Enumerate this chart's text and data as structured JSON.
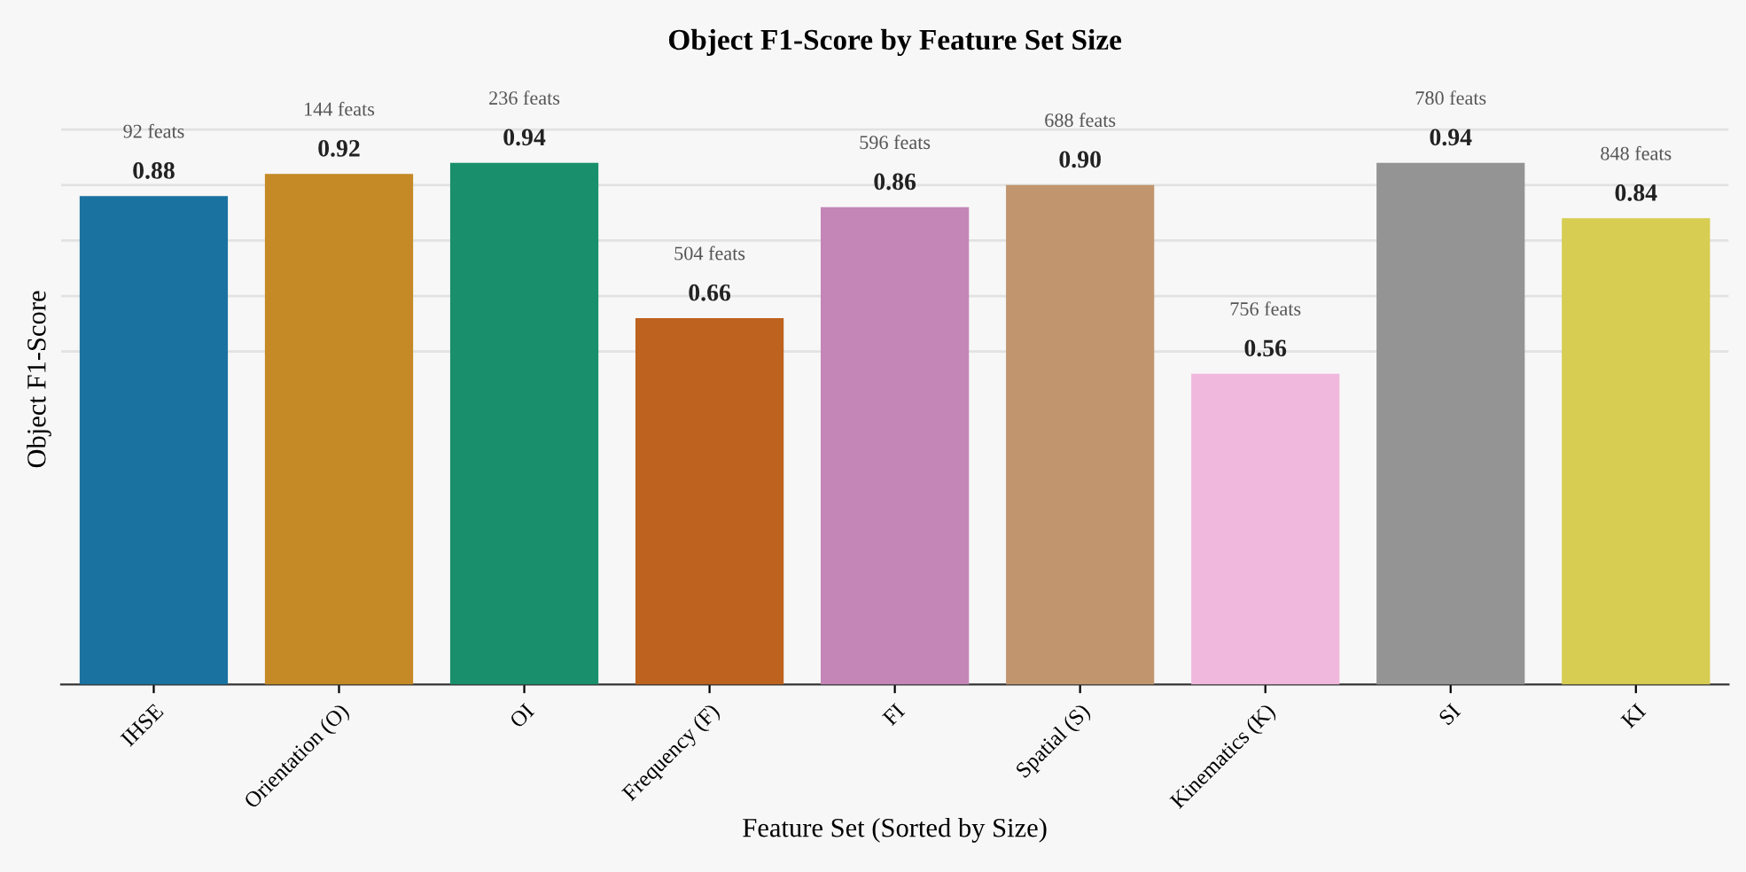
{
  "chart_data": {
    "type": "bar",
    "title": "Object F1-Score by Feature Set Size",
    "xlabel": "Feature Set (Sorted by Size)",
    "ylabel": "Object F1-Score",
    "categories": [
      "IHSE",
      "Orientation (O)",
      "OI",
      "Frequency (F)",
      "FI",
      "Spatial (S)",
      "Kinematics (K)",
      "SI",
      "KI"
    ],
    "values": [
      0.88,
      0.92,
      0.94,
      0.66,
      0.86,
      0.9,
      0.56,
      0.94,
      0.84
    ],
    "colors": [
      "#1a72a0",
      "#c58a25",
      "#1a8f6c",
      "#bd621f",
      "#c386b7",
      "#c1966f",
      "#f0b8dd",
      "#949494",
      "#d6cd52"
    ],
    "value_labels": [
      "0.88",
      "0.92",
      "0.94",
      "0.66",
      "0.86",
      "0.90",
      "0.56",
      "0.94",
      "0.84"
    ],
    "annotations": [
      {
        "text": "92 feats",
        "x": "IHSE",
        "y": 0.88
      },
      {
        "text": "144 feats",
        "x": "Orientation (O)",
        "y": 0.92
      },
      {
        "text": "236 feats",
        "x": "OI",
        "y": 0.94
      },
      {
        "text": "504 feats",
        "x": "Frequency (F)",
        "y": 0.66
      },
      {
        "text": "596 feats",
        "x": "FI",
        "y": 0.86
      },
      {
        "text": "688 feats",
        "x": "Spatial (S)",
        "y": 0.9
      },
      {
        "text": "756 feats",
        "x": "Kinematics (K)",
        "y": 0.56
      },
      {
        "text": "780 feats",
        "x": "SI",
        "y": 0.94
      },
      {
        "text": "848 feats",
        "x": "KI",
        "y": 0.84
      }
    ],
    "yticks": [
      {
        "value": 0.6,
        "label": null
      },
      {
        "value": 0.7,
        "label": null
      },
      {
        "value": 0.8,
        "label": null
      },
      {
        "value": 0.9,
        "label": null
      },
      {
        "value": 1.0,
        "label": null
      }
    ],
    "tick_labels": "x",
    "grid": "y",
    "legend": false
  }
}
